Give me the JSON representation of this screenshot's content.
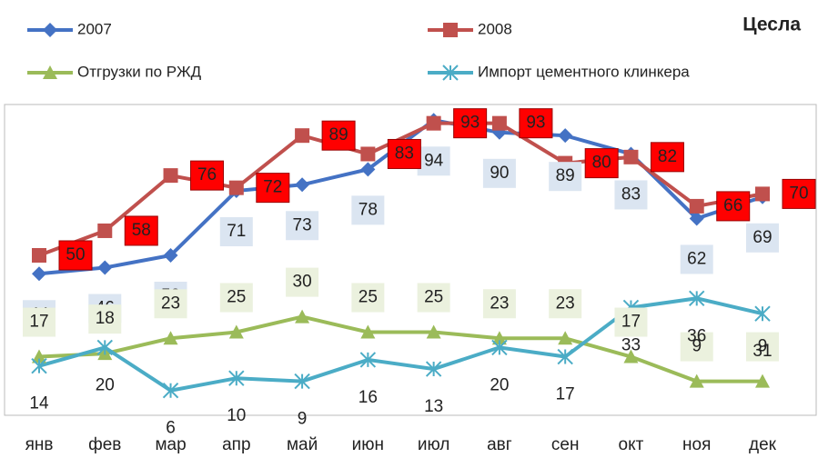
{
  "chart_data": {
    "type": "line",
    "title": "Цесла",
    "categories": [
      "янв",
      "фев",
      "мар",
      "апр",
      "май",
      "июн",
      "июл",
      "авг",
      "сен",
      "окт",
      "ноя",
      "дек"
    ],
    "ylim": [
      0,
      100
    ],
    "series": [
      {
        "name": "2007",
        "color": "#4472c4",
        "marker": "diamond",
        "values": [
          44,
          46,
          50,
          71,
          73,
          78,
          94,
          90,
          89,
          83,
          62,
          69
        ]
      },
      {
        "name": "2008",
        "color": "#c0504d",
        "marker": "square",
        "values": [
          50,
          58,
          76,
          72,
          89,
          83,
          93,
          93,
          80,
          82,
          66,
          70
        ]
      },
      {
        "name": "Отгрузки по РЖД",
        "color": "#9bbb59",
        "marker": "triangle",
        "values": [
          17,
          18,
          23,
          25,
          30,
          25,
          25,
          23,
          23,
          17,
          9,
          9
        ]
      },
      {
        "name": "Импорт цементного клинкера",
        "color": "#4bacc6",
        "marker": "star",
        "values": [
          14,
          20,
          6,
          10,
          9,
          16,
          13,
          20,
          17,
          33,
          36,
          31
        ]
      }
    ]
  }
}
